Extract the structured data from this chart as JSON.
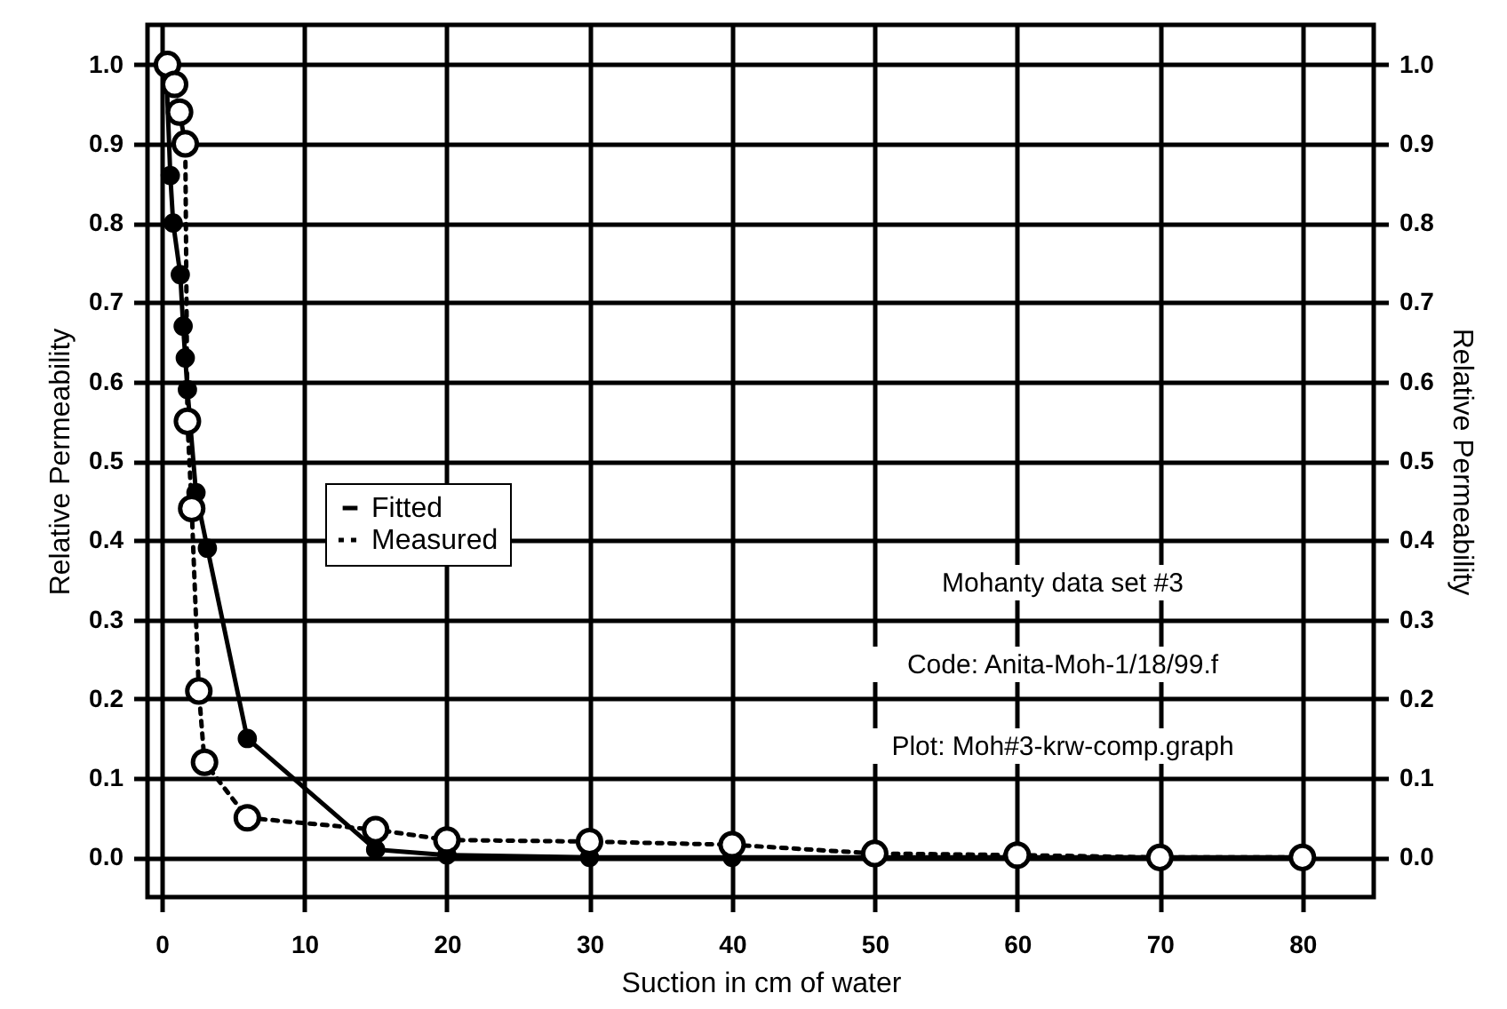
{
  "chart_data": {
    "type": "line",
    "xlabel": "Suction in cm of water",
    "ylabel": "Relative Permeability",
    "y2label": "Relative Permeability",
    "xlim": [
      -1,
      85
    ],
    "xticks": [
      0,
      10,
      20,
      30,
      40,
      50,
      60,
      70,
      80
    ],
    "ylim": [
      -0.05,
      1.05
    ],
    "yticks": [
      {
        "value": 0,
        "label": "0.0"
      },
      {
        "value": 0.1,
        "label": "0.1"
      },
      {
        "value": 0.2,
        "label": "0.2"
      },
      {
        "value": 0.3,
        "label": "0.3"
      },
      {
        "value": 0.4,
        "label": "0.4"
      },
      {
        "value": 0.5,
        "label": "0.5"
      },
      {
        "value": 0.6,
        "label": "0.6"
      },
      {
        "value": 0.7,
        "label": "0.7"
      },
      {
        "value": 0.8,
        "label": "0.8"
      },
      {
        "value": 0.9,
        "label": "0.9"
      },
      {
        "value": 1,
        "label": "1.0"
      }
    ],
    "y2lim": [
      -0.05,
      1.05
    ],
    "y2ticks": [
      {
        "value": 0,
        "label": "0.0"
      },
      {
        "value": 0.1,
        "label": "0.1"
      },
      {
        "value": 0.2,
        "label": "0.2"
      },
      {
        "value": 0.3,
        "label": "0.3"
      },
      {
        "value": 0.4,
        "label": "0.4"
      },
      {
        "value": 0.5,
        "label": "0.5"
      },
      {
        "value": 0.6,
        "label": "0.6"
      },
      {
        "value": 0.7,
        "label": "0.7"
      },
      {
        "value": 0.8,
        "label": "0.8"
      },
      {
        "value": 0.9,
        "label": "0.9"
      },
      {
        "value": 1,
        "label": "1.0"
      }
    ],
    "grid": true,
    "legend": "left",
    "marker": "circle",
    "series": [
      {
        "name": "Fitted",
        "color": "#000000",
        "line_style": "solid",
        "x": [
          0.3,
          0.6,
          0.8,
          1.3,
          1.5,
          1.65,
          1.8,
          2.4,
          3.2,
          6,
          15,
          20,
          30,
          40,
          50,
          60,
          70,
          80
        ],
        "values": [
          1.0,
          0.86,
          0.8,
          0.735,
          0.67,
          0.63,
          0.59,
          0.46,
          0.39,
          0.15,
          0.01,
          0.003,
          0,
          0,
          0,
          0,
          0,
          0
        ]
      },
      {
        "name": "Measured",
        "color": "#000000",
        "line_style": "dotted",
        "x": [
          0.4,
          0.9,
          1.25,
          1.65,
          1.8,
          2.1,
          2.6,
          3.0,
          6,
          15,
          20,
          30,
          40,
          50,
          60,
          70,
          80
        ],
        "values": [
          1.0,
          0.975,
          0.94,
          0.9,
          0.55,
          0.44,
          0.21,
          0.12,
          0.05,
          0.035,
          0.022,
          0.02,
          0.016,
          0.005,
          0.003,
          0,
          0
        ]
      }
    ],
    "annotations": [
      "Mohanty data set #3",
      "Code: Anita-Moh-1/18/99.f",
      "Plot: Moh#3-krw-comp.graph"
    ]
  }
}
